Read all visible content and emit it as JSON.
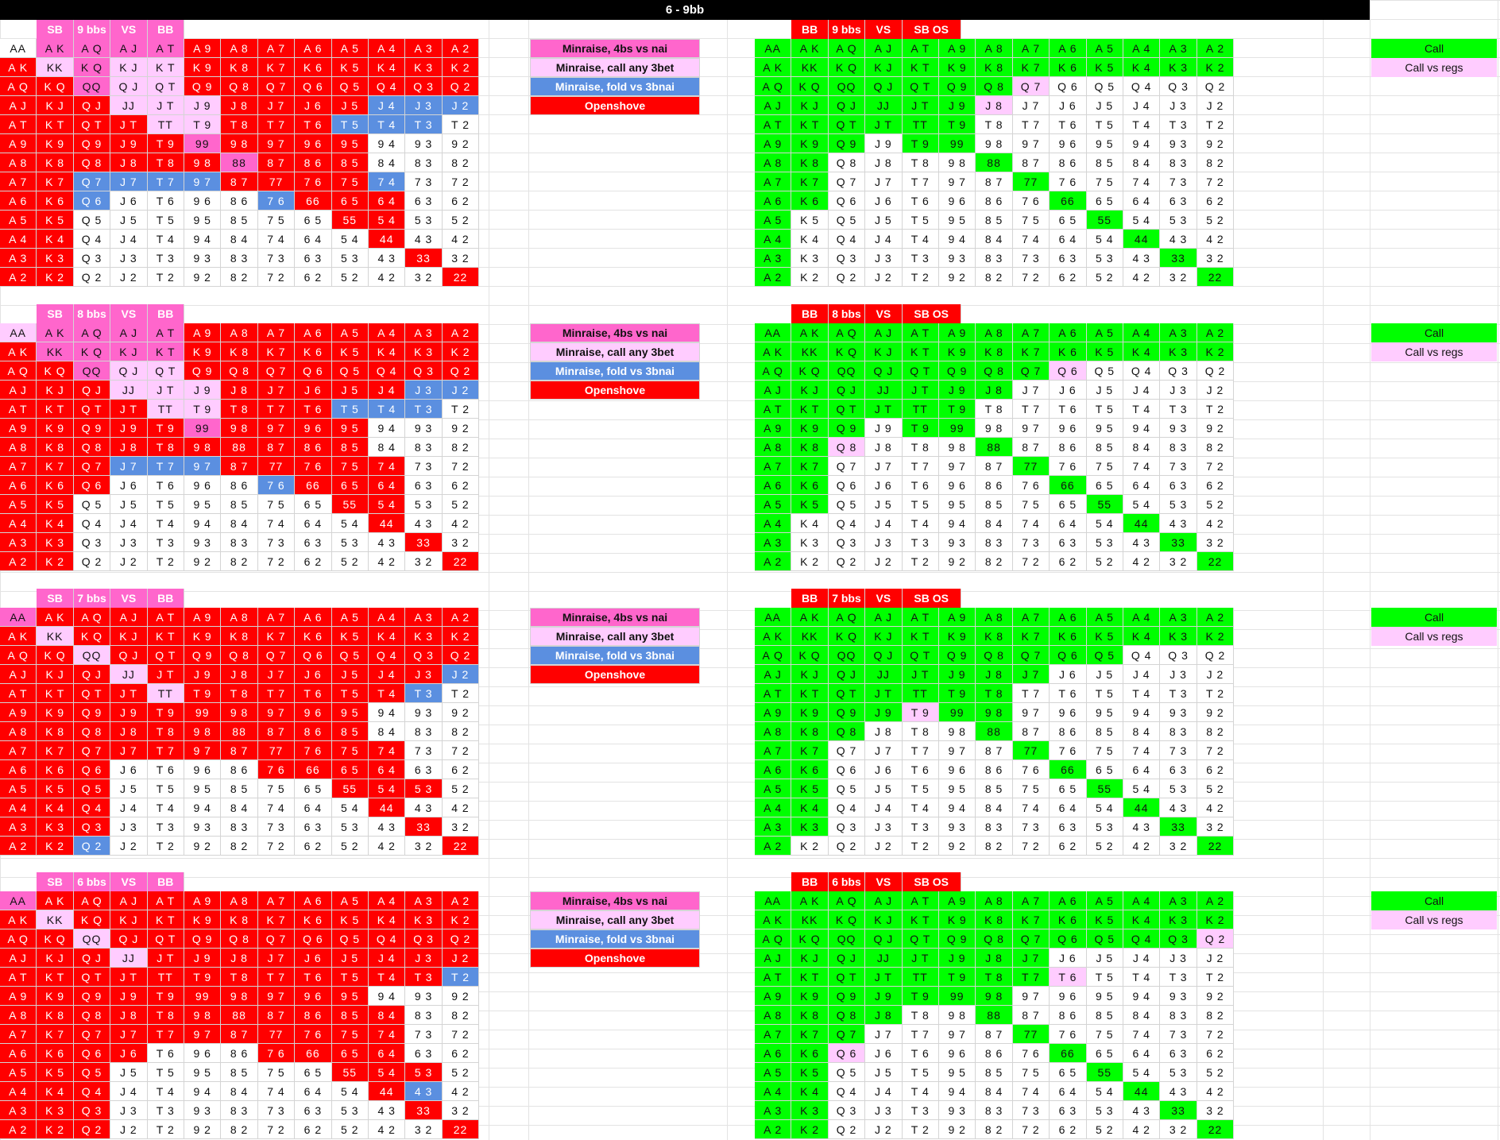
{
  "title": "6 - 9bb",
  "ranks": [
    "A",
    "K",
    "Q",
    "J",
    "T",
    "9",
    "8",
    "7",
    "6",
    "5",
    "4",
    "3",
    "2"
  ],
  "colors": {
    "red": "#ff0000",
    "hotpink": "#ff66cc",
    "lightpink": "#ffccff",
    "blue": "#5b8fe0",
    "green": "#00ff00",
    "header_pink": "#ff66cc",
    "header_red": "#ff0000"
  },
  "legend_left": [
    {
      "label": "Minraise, 4bs vs nai",
      "color": "hotpink",
      "dark": false
    },
    {
      "label": "Minraise, call any 3bet",
      "color": "lightpink",
      "dark": false
    },
    {
      "label": "Minraise, fold vs 3bnai",
      "color": "blue",
      "dark": true
    },
    {
      "label": "Openshove",
      "color": "red",
      "dark": true
    }
  ],
  "legend_right": [
    {
      "label": "Call",
      "color": "green"
    },
    {
      "label": "Call vs regs",
      "color": "lightpink"
    }
  ],
  "sections": [
    {
      "left_header": [
        "SB",
        "9 bbs",
        "VS",
        "BB"
      ],
      "right_header": [
        "BB",
        "9 bbs",
        "VS",
        "SB OS"
      ],
      "left_grid": [
        "WHHHHRRRRRRRR",
        "RLHLLRRRRRRRR",
        "RRHLLRRRRRRRR",
        "RRRLLLRRRRBBB",
        "RRRRLLRRRBBBW",
        "RRRRRHRRRRWWW",
        "RRRRRRHRRRWWW",
        "RRBBBBRRRRBWW",
        "RRBWWWWBRRRWW",
        "RRWWWWWWWRRWW",
        "RRWWWWWWWWRWW",
        "RRWWWWWWWWWRW",
        "RRWWWWWWWWWWR"
      ],
      "right_grid": [
        "GGGGGGGGGGGGG",
        "GGGGGGGGGGGGG",
        "GGGGGGGPWWWWW",
        "GGGGGGPWWWWWW",
        "GGGGGGWWWWWWW",
        "GGGWGGWWWWWWW",
        "GGWWWWGWWWWWW",
        "GGWWWWWGWWWWW",
        "GGWWWWWWGWWWW",
        "GWWWWWWWWGWWW",
        "GWWWWWWWWWGWW",
        "GWWWWWWWWWWGW",
        "GWWWWWWWWWWWG"
      ]
    },
    {
      "left_header": [
        "SB",
        "8 bbs",
        "VS",
        "BB"
      ],
      "right_header": [
        "BB",
        "8 bbs",
        "VS",
        "SB OS"
      ],
      "left_grid": [
        "LHHHHRRRRRRRR",
        "RHHHHRRRRRRRR",
        "RRHLLRRRRRRRR",
        "RRRLLLRRRRRBB",
        "RRRRLLRRRBBBW",
        "RRRRRHRRRRWWW",
        "RRRRRRRRRRWWW",
        "RRRBBBRRRRRWW",
        "RRRWWWWBRRRWW",
        "RRWWWWWWWRRWW",
        "RRWWWWWWWWRWW",
        "RRWWWWWWWWWRW",
        "RRWWWWWWWWWWR"
      ],
      "right_grid": [
        "GGGGGGGGGGGGG",
        "GGGGGGGGGGGGG",
        "GGGGGGGGPWWWW",
        "GGGGGGGWWWWWW",
        "GGGGGGWWWWWWW",
        "GGGWGGWWWWWWW",
        "GGPWWWGWWWWWW",
        "GGWWWWWGWWWWW",
        "GGWWWWWWGWWWW",
        "GGWWWWWWWGWWW",
        "GWWWWWWWWWGWW",
        "GWWWWWWWWWWGW",
        "GWWWWWWWWWWWG"
      ]
    },
    {
      "left_header": [
        "SB",
        "7 bbs",
        "VS",
        "BB"
      ],
      "right_header": [
        "BB",
        "7 bbs",
        "VS",
        "SB OS"
      ],
      "left_grid": [
        "HRRRRRRRRRRRR",
        "RLRRRRRRRRRRR",
        "RRLRRRRRRRRRR",
        "RRRLRRRRRRRRB",
        "RRRRLRRRRRRBW",
        "RRRRRRRRRRWWW",
        "RRRRRRRRRRWWW",
        "RRRRRRRRRRRWW",
        "RRRWWWWRRRRWW",
        "RRRWWWWWWRRRW",
        "RRRWWWWWWWRWW",
        "RRRWWWWWWWWRW",
        "RRBWWWWWWWWWR"
      ],
      "right_grid": [
        "GGGGGGGGGGGGG",
        "GGGGGGGGGGGGG",
        "GGGGGGGGGGWWW",
        "GGGGGGGGWWWWW",
        "GGGGGGGWWWWWW",
        "GGGGPGGWWWWWW",
        "GGGWWWGWWWWWW",
        "GGWWWWWGWWWWW",
        "GGWWWWWWGWWWW",
        "GGWWWWWWWGWWW",
        "GGWWWWWWWWGWW",
        "GGWWWWWWWWWGW",
        "GWWWWWWWWWWWG"
      ]
    },
    {
      "left_header": [
        "SB",
        "6 bbs",
        "VS",
        "BB"
      ],
      "right_header": [
        "BB",
        "6 bbs",
        "VS",
        "SB OS"
      ],
      "left_grid": [
        "HRRRRRRRRRRRR",
        "RLRRRRRRRRRRR",
        "RRLRRRRRRRRRR",
        "RRRLRRRRRRRRR",
        "RRRRRRRRRRRRB",
        "RRRRRRRRRRWWW",
        "RRRRRRRRRRRWW",
        "RRRRRRRRRRRWW",
        "RRRRWWWRRRRWW",
        "RRRWWWWWWRRRW",
        "RRRWWWWWWWRBW",
        "RRRWWWWWWWWRW",
        "RRRWWWWWWWWWR"
      ],
      "right_grid": [
        "GGGGGGGGGGGGG",
        "GGGGGGGGGGGGG",
        "GGGGGGGGGGGGP",
        "GGGGGGGGWWWWW",
        "GGGGGGGGPWWWW",
        "GGGGGGGWWWWWW",
        "GGGGWWGWWWWWW",
        "GGGWWWWGWWWWW",
        "GGPWWWWWGWWWW",
        "GGWWWWWWWGWWW",
        "GGWWWWWWWWGWW",
        "GGWWWWWWWWWGW",
        "GGWWWWWWWWWWG"
      ]
    }
  ]
}
